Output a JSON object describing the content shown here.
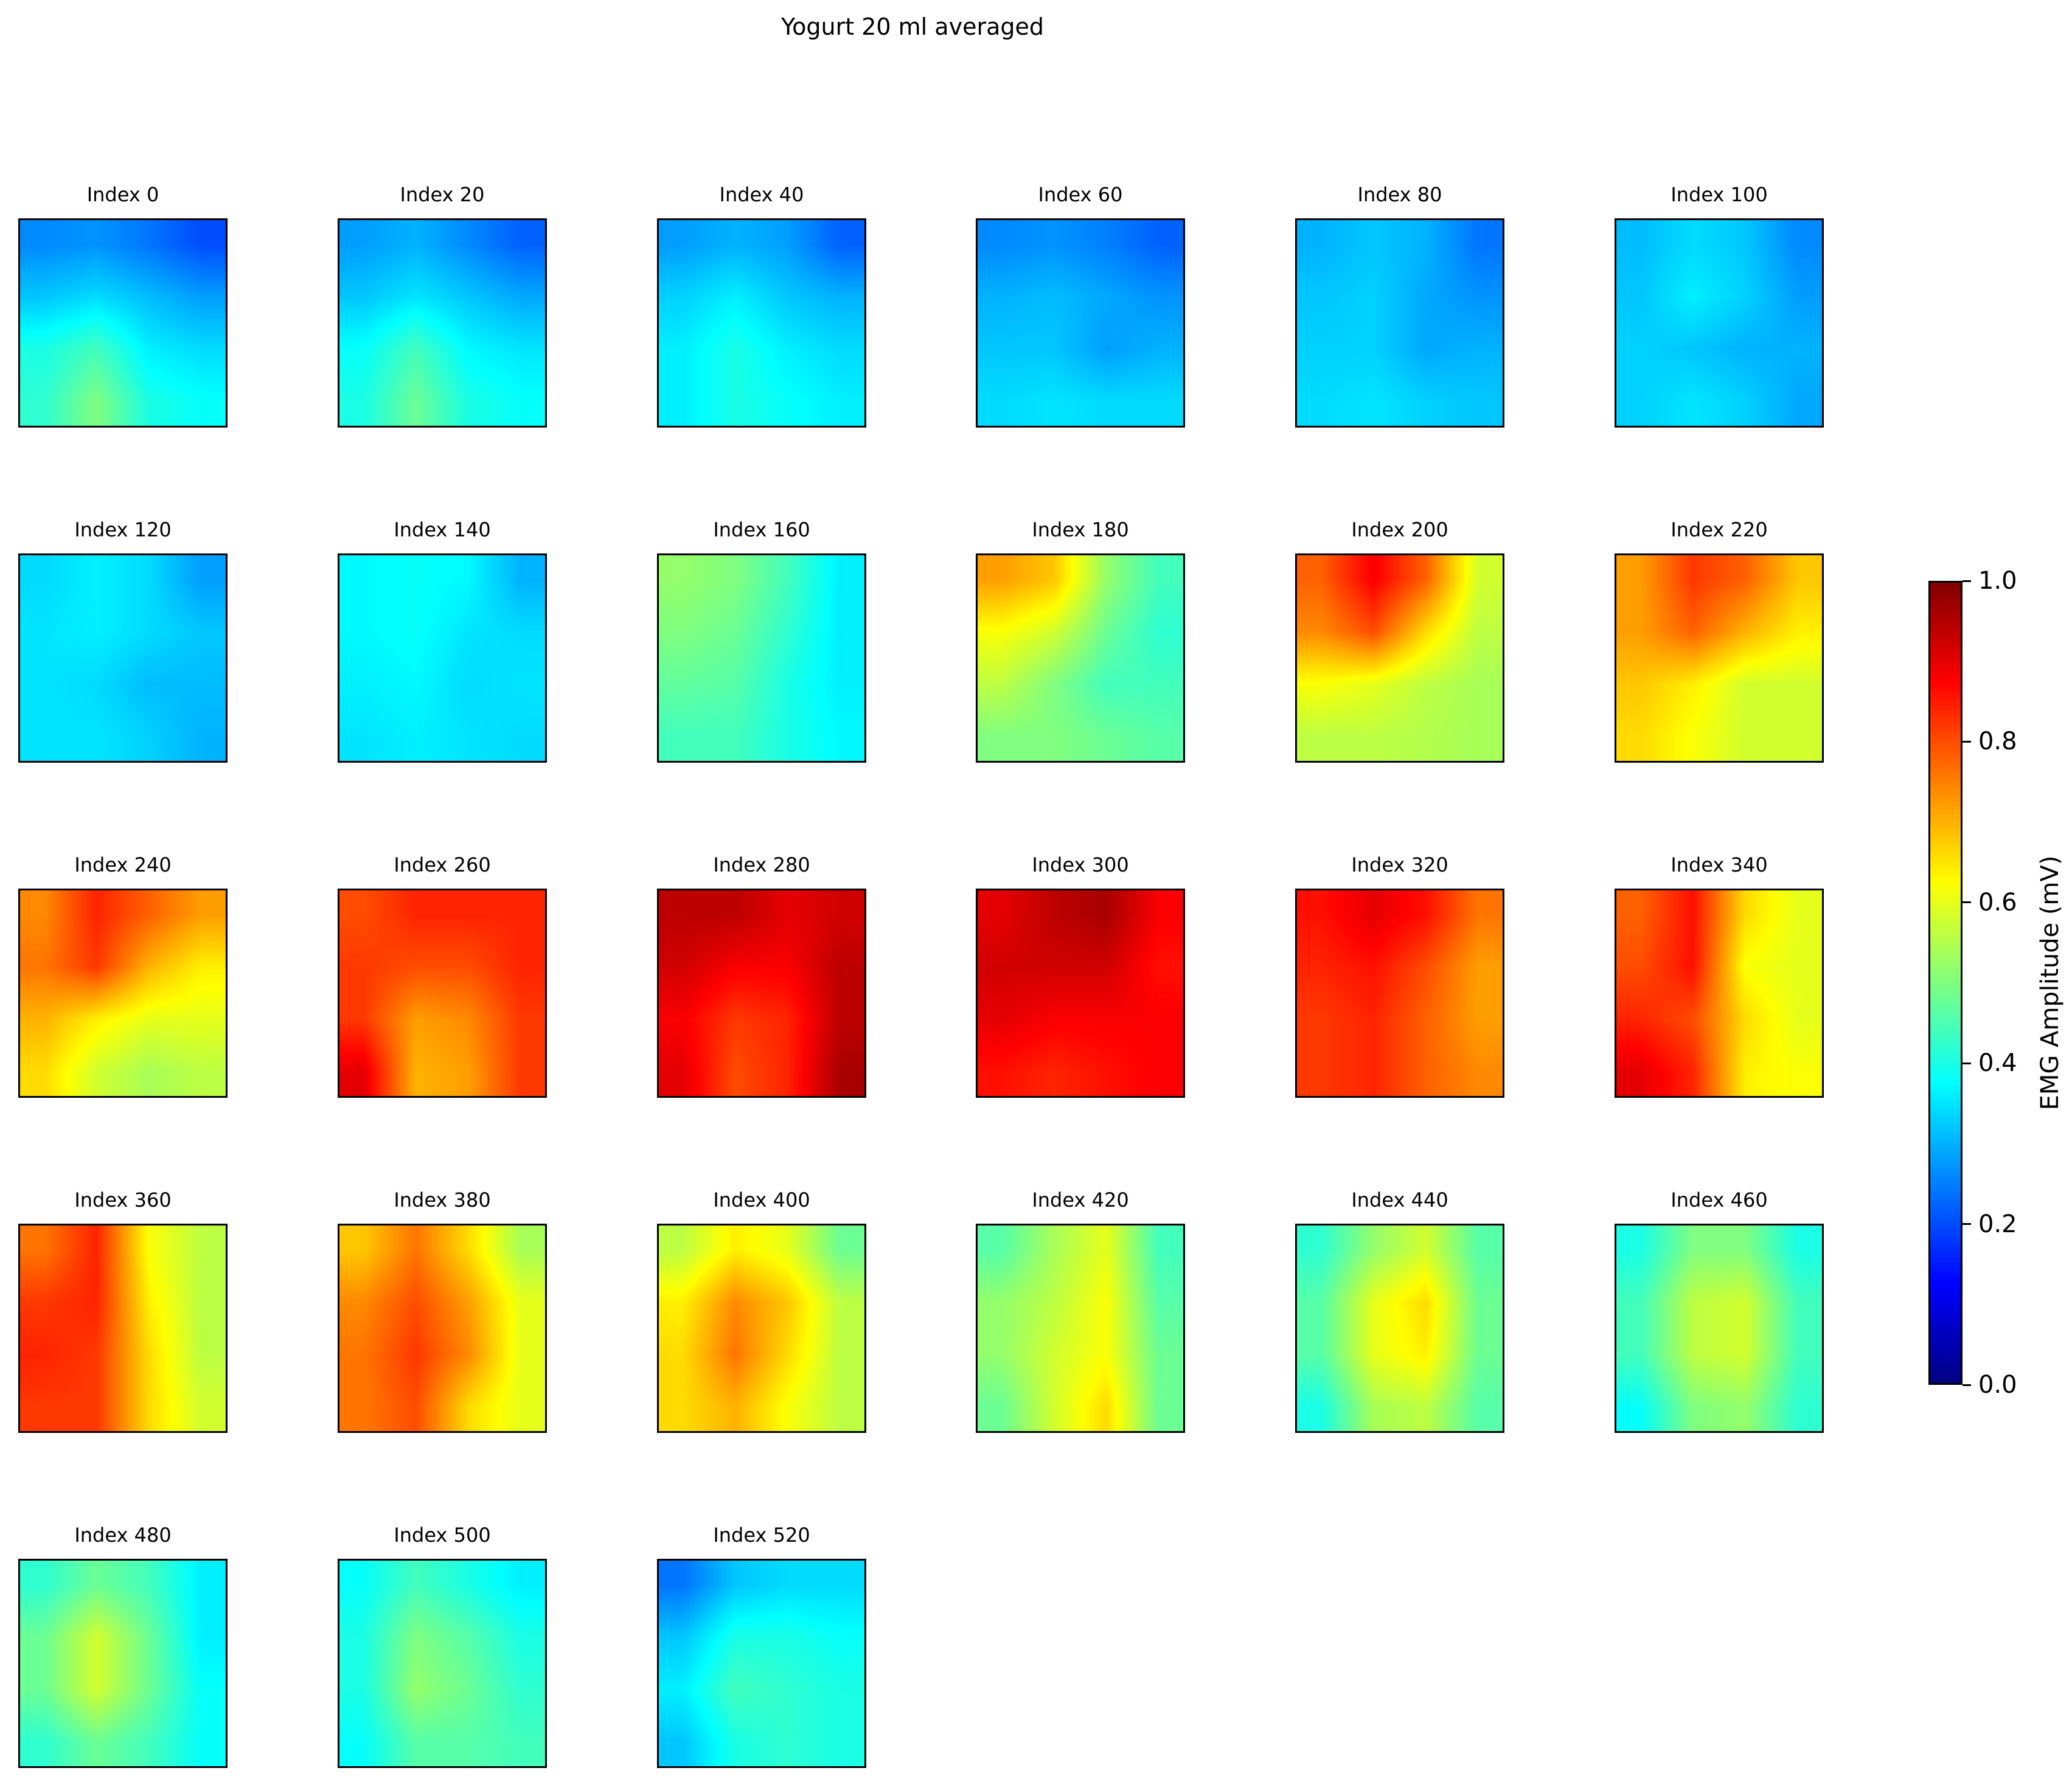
{
  "chart_data": {
    "type": "heatmap",
    "title": "Yogurt 20 ml averaged",
    "colormap": "jet",
    "colorbar": {
      "label": "EMG Amplitude (mV)",
      "range": [
        0.0,
        1.0
      ],
      "ticks": [
        "0.0",
        "0.2",
        "0.4",
        "0.6",
        "0.8",
        "1.0"
      ],
      "tick_values": [
        0.0,
        0.2,
        0.4,
        0.6,
        0.8,
        1.0
      ]
    },
    "grid": {
      "rows": 5,
      "cols": 6
    },
    "panels": [
      {
        "title": "Index 0",
        "values": [
          [
            0.26,
            0.27,
            0.24,
            0.2
          ],
          [
            0.32,
            0.34,
            0.31,
            0.28
          ],
          [
            0.4,
            0.44,
            0.36,
            0.34
          ],
          [
            0.42,
            0.5,
            0.4,
            0.38
          ]
        ]
      },
      {
        "title": "Index 20",
        "values": [
          [
            0.28,
            0.3,
            0.26,
            0.22
          ],
          [
            0.32,
            0.35,
            0.32,
            0.29
          ],
          [
            0.38,
            0.44,
            0.37,
            0.35
          ],
          [
            0.4,
            0.48,
            0.4,
            0.38
          ]
        ]
      },
      {
        "title": "Index 40",
        "values": [
          [
            0.28,
            0.3,
            0.28,
            0.22
          ],
          [
            0.33,
            0.36,
            0.32,
            0.3
          ],
          [
            0.36,
            0.4,
            0.36,
            0.34
          ],
          [
            0.36,
            0.4,
            0.38,
            0.36
          ]
        ]
      },
      {
        "title": "Index 60",
        "values": [
          [
            0.26,
            0.27,
            0.25,
            0.22
          ],
          [
            0.3,
            0.31,
            0.29,
            0.27
          ],
          [
            0.32,
            0.32,
            0.28,
            0.3
          ],
          [
            0.34,
            0.35,
            0.34,
            0.34
          ]
        ]
      },
      {
        "title": "Index 80",
        "values": [
          [
            0.3,
            0.32,
            0.3,
            0.24
          ],
          [
            0.32,
            0.33,
            0.29,
            0.27
          ],
          [
            0.33,
            0.33,
            0.29,
            0.3
          ],
          [
            0.34,
            0.35,
            0.33,
            0.32
          ]
        ]
      },
      {
        "title": "Index 100",
        "values": [
          [
            0.31,
            0.34,
            0.32,
            0.26
          ],
          [
            0.32,
            0.36,
            0.33,
            0.28
          ],
          [
            0.33,
            0.32,
            0.3,
            0.3
          ],
          [
            0.33,
            0.35,
            0.33,
            0.29
          ]
        ]
      },
      {
        "title": "Index 120",
        "values": [
          [
            0.34,
            0.36,
            0.34,
            0.28
          ],
          [
            0.35,
            0.36,
            0.34,
            0.32
          ],
          [
            0.35,
            0.34,
            0.31,
            0.31
          ],
          [
            0.35,
            0.35,
            0.33,
            0.3
          ]
        ]
      },
      {
        "title": "Index 140",
        "values": [
          [
            0.37,
            0.38,
            0.37,
            0.3
          ],
          [
            0.37,
            0.38,
            0.35,
            0.34
          ],
          [
            0.36,
            0.37,
            0.34,
            0.35
          ],
          [
            0.35,
            0.36,
            0.35,
            0.34
          ]
        ]
      },
      {
        "title": "Index 160",
        "values": [
          [
            0.52,
            0.5,
            0.44,
            0.36
          ],
          [
            0.5,
            0.48,
            0.42,
            0.36
          ],
          [
            0.47,
            0.46,
            0.4,
            0.36
          ],
          [
            0.44,
            0.44,
            0.4,
            0.37
          ]
        ]
      },
      {
        "title": "Index 180",
        "values": [
          [
            0.72,
            0.68,
            0.52,
            0.44
          ],
          [
            0.62,
            0.58,
            0.48,
            0.42
          ],
          [
            0.56,
            0.5,
            0.44,
            0.44
          ],
          [
            0.5,
            0.5,
            0.48,
            0.46
          ]
        ]
      },
      {
        "title": "Index 200",
        "values": [
          [
            0.78,
            0.88,
            0.78,
            0.58
          ],
          [
            0.74,
            0.8,
            0.66,
            0.56
          ],
          [
            0.62,
            0.6,
            0.56,
            0.54
          ],
          [
            0.56,
            0.56,
            0.55,
            0.54
          ]
        ]
      },
      {
        "title": "Index 220",
        "values": [
          [
            0.72,
            0.82,
            0.78,
            0.68
          ],
          [
            0.72,
            0.78,
            0.7,
            0.64
          ],
          [
            0.68,
            0.64,
            0.58,
            0.58
          ],
          [
            0.66,
            0.62,
            0.58,
            0.58
          ]
        ]
      },
      {
        "title": "Index 240",
        "values": [
          [
            0.74,
            0.84,
            0.78,
            0.72
          ],
          [
            0.76,
            0.82,
            0.7,
            0.64
          ],
          [
            0.7,
            0.64,
            0.6,
            0.6
          ],
          [
            0.66,
            0.58,
            0.54,
            0.56
          ]
        ]
      },
      {
        "title": "Index 260",
        "values": [
          [
            0.8,
            0.84,
            0.84,
            0.84
          ],
          [
            0.82,
            0.8,
            0.8,
            0.84
          ],
          [
            0.82,
            0.72,
            0.74,
            0.82
          ],
          [
            0.9,
            0.7,
            0.72,
            0.82
          ]
        ]
      },
      {
        "title": "Index 280",
        "values": [
          [
            0.94,
            0.94,
            0.9,
            0.92
          ],
          [
            0.92,
            0.88,
            0.88,
            0.94
          ],
          [
            0.88,
            0.82,
            0.84,
            0.94
          ],
          [
            0.9,
            0.8,
            0.84,
            0.96
          ]
        ]
      },
      {
        "title": "Index 300",
        "values": [
          [
            0.9,
            0.94,
            0.96,
            0.88
          ],
          [
            0.92,
            0.92,
            0.92,
            0.86
          ],
          [
            0.9,
            0.88,
            0.88,
            0.88
          ],
          [
            0.86,
            0.84,
            0.86,
            0.88
          ]
        ]
      },
      {
        "title": "Index 320",
        "values": [
          [
            0.86,
            0.9,
            0.86,
            0.76
          ],
          [
            0.84,
            0.86,
            0.8,
            0.72
          ],
          [
            0.82,
            0.84,
            0.78,
            0.72
          ],
          [
            0.82,
            0.84,
            0.78,
            0.74
          ]
        ]
      },
      {
        "title": "Index 340",
        "values": [
          [
            0.78,
            0.86,
            0.66,
            0.6
          ],
          [
            0.8,
            0.86,
            0.62,
            0.6
          ],
          [
            0.84,
            0.8,
            0.66,
            0.6
          ],
          [
            0.9,
            0.84,
            0.64,
            0.62
          ]
        ]
      },
      {
        "title": "Index 360",
        "values": [
          [
            0.76,
            0.84,
            0.62,
            0.56
          ],
          [
            0.82,
            0.84,
            0.64,
            0.56
          ],
          [
            0.84,
            0.82,
            0.66,
            0.56
          ],
          [
            0.82,
            0.82,
            0.66,
            0.58
          ]
        ]
      },
      {
        "title": "Index 380",
        "values": [
          [
            0.68,
            0.76,
            0.66,
            0.54
          ],
          [
            0.74,
            0.8,
            0.72,
            0.6
          ],
          [
            0.76,
            0.82,
            0.74,
            0.6
          ],
          [
            0.76,
            0.8,
            0.66,
            0.6
          ]
        ]
      },
      {
        "title": "Index 400",
        "values": [
          [
            0.56,
            0.64,
            0.6,
            0.48
          ],
          [
            0.64,
            0.74,
            0.68,
            0.56
          ],
          [
            0.66,
            0.76,
            0.66,
            0.56
          ],
          [
            0.66,
            0.7,
            0.62,
            0.56
          ]
        ]
      },
      {
        "title": "Index 420",
        "values": [
          [
            0.46,
            0.54,
            0.6,
            0.44
          ],
          [
            0.52,
            0.56,
            0.62,
            0.46
          ],
          [
            0.52,
            0.58,
            0.62,
            0.48
          ],
          [
            0.48,
            0.58,
            0.66,
            0.48
          ]
        ]
      },
      {
        "title": "Index 440",
        "values": [
          [
            0.42,
            0.52,
            0.58,
            0.46
          ],
          [
            0.46,
            0.6,
            0.66,
            0.48
          ],
          [
            0.46,
            0.6,
            0.64,
            0.48
          ],
          [
            0.4,
            0.54,
            0.56,
            0.46
          ]
        ]
      },
      {
        "title": "Index 460",
        "values": [
          [
            0.4,
            0.5,
            0.5,
            0.4
          ],
          [
            0.44,
            0.56,
            0.58,
            0.44
          ],
          [
            0.44,
            0.56,
            0.58,
            0.44
          ],
          [
            0.38,
            0.5,
            0.52,
            0.42
          ]
        ]
      },
      {
        "title": "Index 480",
        "values": [
          [
            0.42,
            0.48,
            0.44,
            0.36
          ],
          [
            0.48,
            0.58,
            0.48,
            0.36
          ],
          [
            0.48,
            0.58,
            0.48,
            0.38
          ],
          [
            0.42,
            0.48,
            0.44,
            0.38
          ]
        ]
      },
      {
        "title": "Index 500",
        "values": [
          [
            0.38,
            0.44,
            0.4,
            0.36
          ],
          [
            0.4,
            0.5,
            0.46,
            0.4
          ],
          [
            0.4,
            0.52,
            0.48,
            0.42
          ],
          [
            0.38,
            0.46,
            0.46,
            0.44
          ]
        ]
      },
      {
        "title": "Index 520",
        "values": [
          [
            0.24,
            0.32,
            0.34,
            0.34
          ],
          [
            0.32,
            0.4,
            0.4,
            0.38
          ],
          [
            0.36,
            0.44,
            0.42,
            0.4
          ],
          [
            0.32,
            0.4,
            0.42,
            0.4
          ]
        ]
      }
    ]
  }
}
